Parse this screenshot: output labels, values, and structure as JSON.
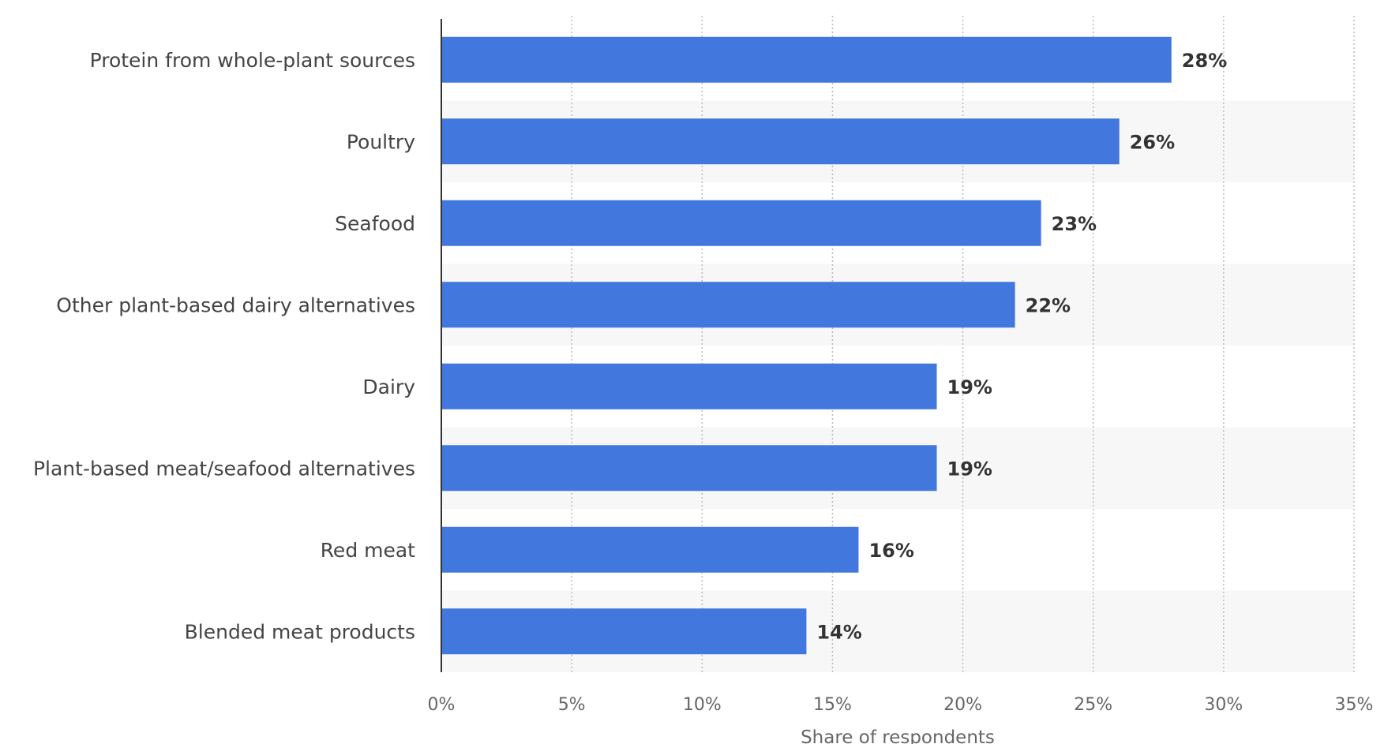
{
  "chart_data": {
    "type": "bar",
    "orientation": "horizontal",
    "categories": [
      "Protein from whole-plant sources",
      "Poultry",
      "Seafood",
      "Other plant-based dairy alternatives",
      "Dairy",
      "Plant-based meat/seafood alternatives",
      "Red meat",
      "Blended meat products"
    ],
    "values": [
      28,
      26,
      23,
      22,
      19,
      19,
      16,
      14
    ],
    "value_labels": [
      "28%",
      "26%",
      "23%",
      "22%",
      "19%",
      "19%",
      "16%",
      "14%"
    ],
    "xlabel": "Share of respondents",
    "xlim": [
      0,
      35
    ],
    "x_ticks": [
      0,
      5,
      10,
      15,
      20,
      25,
      30,
      35
    ],
    "x_tick_labels": [
      "0%",
      "5%",
      "10%",
      "15%",
      "20%",
      "25%",
      "30%",
      "35%"
    ],
    "grid": true,
    "bar_color": "#4277DE",
    "alternate_row_shading": "#F7F7F7"
  }
}
